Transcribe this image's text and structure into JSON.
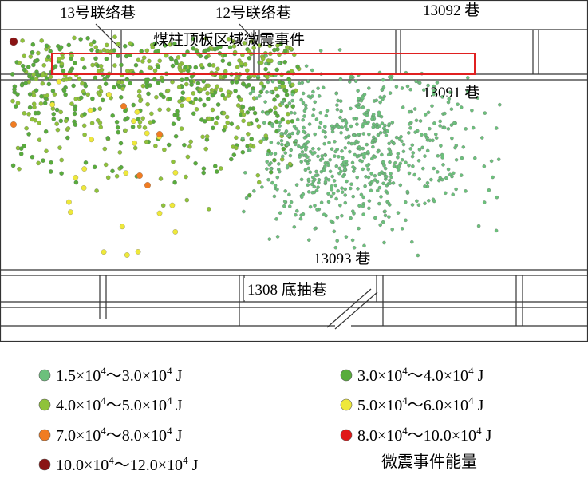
{
  "map": {
    "labels": {
      "connector_13": "13号联络巷",
      "connector_12": "12号联络巷",
      "roadway_13092": "13092 巷",
      "pillar_region": "煤柱顶板区域微震事件",
      "roadway_13091": "13091 巷",
      "roadway_13093": "13093 巷",
      "roadway_1308": "1308 底抽巷"
    },
    "legend": {
      "title": "微震事件能量",
      "items": [
        {
          "color": "#6cc07c",
          "text": [
            "1.5×10",
            "4",
            "～3.0×10",
            "4",
            " J"
          ]
        },
        {
          "color": "#58ac3c",
          "text": [
            "3.0×10",
            "4",
            "～4.0×10",
            "4",
            " J"
          ]
        },
        {
          "color": "#8fc23a",
          "text": [
            "4.0×10",
            "4",
            "～5.0×10",
            "4",
            " J"
          ]
        },
        {
          "color": "#eee83a",
          "text": [
            "5.0×10",
            "4",
            "～6.0×10",
            "4",
            " J"
          ]
        },
        {
          "color": "#f07c22",
          "text": [
            "7.0×10",
            "4",
            "～8.0×10",
            "4",
            " J"
          ]
        },
        {
          "color": "#e01818",
          "text": [
            "8.0×10",
            "4",
            "～10.0×10",
            "4",
            " J"
          ]
        },
        {
          "color": "#8a1414",
          "text": [
            "10.0×10",
            "4",
            "～12.0×10",
            "4",
            " J"
          ]
        }
      ]
    }
  }
}
